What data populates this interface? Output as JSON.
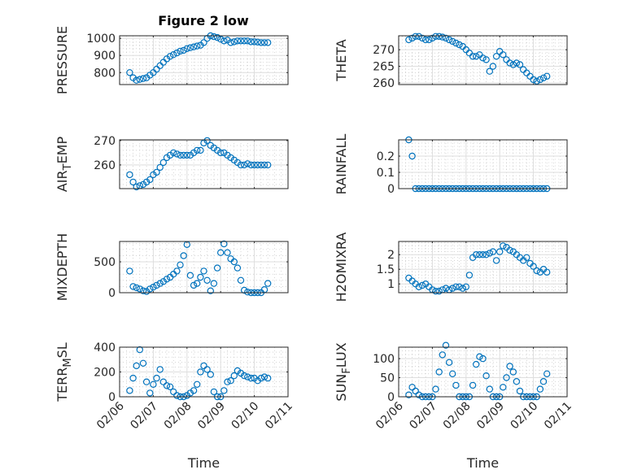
{
  "title": "Figure 2 low",
  "chart_data": [
    {
      "type": "scatter",
      "ylabel_parts": [
        "PRESSURE"
      ],
      "ylim": [
        730,
        1015
      ],
      "yticks": [
        800,
        900,
        1000
      ],
      "ytick_labels": [
        "800",
        "900",
        "1000"
      ],
      "y": [
        800,
        770,
        755,
        760,
        765,
        770,
        785,
        800,
        820,
        840,
        860,
        880,
        895,
        905,
        915,
        925,
        930,
        940,
        945,
        950,
        955,
        960,
        975,
        1000,
        1015,
        1010,
        1005,
        995,
        985,
        990,
        975,
        980,
        985,
        985,
        985,
        985,
        980,
        980,
        978,
        975,
        975,
        975
      ]
    },
    {
      "type": "scatter",
      "ylabel_parts": [
        "THETA"
      ],
      "ylim": [
        259.5,
        274.2
      ],
      "yticks": [
        260,
        265,
        270
      ],
      "ytick_labels": [
        "260",
        "265",
        "270"
      ],
      "y": [
        273,
        273.5,
        274,
        274,
        273.5,
        273,
        273,
        273.5,
        274,
        274,
        273.8,
        273.5,
        273,
        272.5,
        272,
        271.5,
        271,
        270,
        269,
        268,
        268,
        268.5,
        267.5,
        267,
        263.5,
        265,
        268,
        269.5,
        268.5,
        267,
        266,
        265.5,
        266,
        265.5,
        264,
        263,
        262,
        261,
        260.5,
        261,
        261.5,
        262
      ]
    },
    {
      "type": "scatter",
      "ylabel_parts": [
        "AIR",
        "T",
        "EMP"
      ],
      "ylim": [
        250.3,
        270.3
      ],
      "yticks": [
        260,
        270
      ],
      "ytick_labels": [
        "260",
        "270"
      ],
      "y": [
        256,
        253,
        251,
        251.5,
        252,
        253,
        254,
        256,
        257,
        259,
        261,
        263,
        264,
        265,
        264.5,
        264,
        264,
        264,
        264,
        265,
        266,
        266,
        269,
        270,
        268,
        267,
        266,
        265,
        265,
        264,
        263,
        262,
        261,
        260,
        260,
        260.5,
        260,
        260,
        260,
        260,
        260,
        260
      ]
    },
    {
      "type": "scatter",
      "ylabel_parts": [
        "RAINFALL"
      ],
      "ylim": [
        0,
        0.3
      ],
      "yticks": [
        0,
        0.1,
        0.2
      ],
      "ytick_labels": [
        "0",
        "0.1",
        "0.2"
      ],
      "y": [
        0.3,
        0.2,
        0,
        0,
        0,
        0,
        0,
        0,
        0,
        0,
        0,
        0,
        0,
        0,
        0,
        0,
        0,
        0,
        0,
        0,
        0,
        0,
        0,
        0,
        0,
        0,
        0,
        0,
        0,
        0,
        0,
        0,
        0,
        0,
        0,
        0,
        0,
        0,
        0,
        0,
        0,
        0
      ]
    },
    {
      "type": "scatter",
      "ylabel_parts": [
        "MIXDEPTH"
      ],
      "ylim": [
        0,
        830
      ],
      "yticks": [
        0,
        500
      ],
      "ytick_labels": [
        "0",
        "500"
      ],
      "y": [
        350,
        100,
        80,
        60,
        30,
        20,
        60,
        90,
        120,
        150,
        180,
        220,
        250,
        300,
        350,
        450,
        600,
        780,
        280,
        120,
        150,
        250,
        350,
        200,
        30,
        150,
        400,
        650,
        790,
        650,
        550,
        500,
        400,
        200,
        40,
        10,
        0,
        0,
        0,
        0,
        50,
        150
      ]
    },
    {
      "type": "scatter",
      "ylabel_parts": [
        "H2OMIXRA"
      ],
      "ylim": [
        0.7,
        2.45
      ],
      "yticks": [
        1,
        1.5,
        2
      ],
      "ytick_labels": [
        "1",
        "1.5",
        "2"
      ],
      "y": [
        1.2,
        1.1,
        1.0,
        0.9,
        0.95,
        1.0,
        0.9,
        0.8,
        0.75,
        0.75,
        0.8,
        0.85,
        0.8,
        0.85,
        0.9,
        0.9,
        0.85,
        0.9,
        1.3,
        1.9,
        2.0,
        2.0,
        2.0,
        2.0,
        2.05,
        2.1,
        1.8,
        2.1,
        2.3,
        2.25,
        2.15,
        2.1,
        2.0,
        1.9,
        1.8,
        1.9,
        1.7,
        1.6,
        1.45,
        1.4,
        1.5,
        1.4
      ]
    },
    {
      "type": "scatter",
      "ylabel_parts": [
        "TERR",
        "M",
        "SL"
      ],
      "ylim": [
        0,
        400
      ],
      "yticks": [
        0,
        200,
        400
      ],
      "ytick_labels": [
        "0",
        "200",
        "400"
      ],
      "xlabel": "Time",
      "y": [
        50,
        150,
        250,
        380,
        270,
        120,
        30,
        100,
        150,
        220,
        120,
        90,
        80,
        40,
        10,
        0,
        0,
        10,
        30,
        50,
        100,
        200,
        250,
        220,
        180,
        40,
        0,
        0,
        50,
        120,
        130,
        170,
        210,
        190,
        170,
        160,
        150,
        150,
        130,
        150,
        160,
        150
      ]
    },
    {
      "type": "scatter",
      "ylabel_parts": [
        "SUN",
        "F",
        "LUX"
      ],
      "ylim": [
        0,
        130
      ],
      "yticks": [
        0,
        50,
        100
      ],
      "ytick_labels": [
        "0",
        "50",
        "100"
      ],
      "xlabel": "Time",
      "y": [
        5,
        25,
        15,
        5,
        0,
        0,
        0,
        0,
        20,
        65,
        110,
        135,
        90,
        60,
        30,
        0,
        0,
        0,
        0,
        30,
        85,
        105,
        100,
        55,
        20,
        0,
        0,
        0,
        25,
        50,
        80,
        65,
        40,
        15,
        0,
        0,
        0,
        0,
        0,
        20,
        40,
        60
      ]
    }
  ],
  "x_axis": {
    "unit": "days since 02/06",
    "xlim": [
      0,
      5
    ],
    "xticks": [
      0,
      1,
      2,
      3,
      4,
      5
    ],
    "xtick_labels": [
      "02/06",
      "02/07",
      "02/08",
      "02/09",
      "02/10",
      "02/11"
    ],
    "x_start": 0.3,
    "x_step": 0.1
  },
  "colors": {
    "marker": "#0072BD",
    "axis": "#262626",
    "grid": "#dedede"
  }
}
